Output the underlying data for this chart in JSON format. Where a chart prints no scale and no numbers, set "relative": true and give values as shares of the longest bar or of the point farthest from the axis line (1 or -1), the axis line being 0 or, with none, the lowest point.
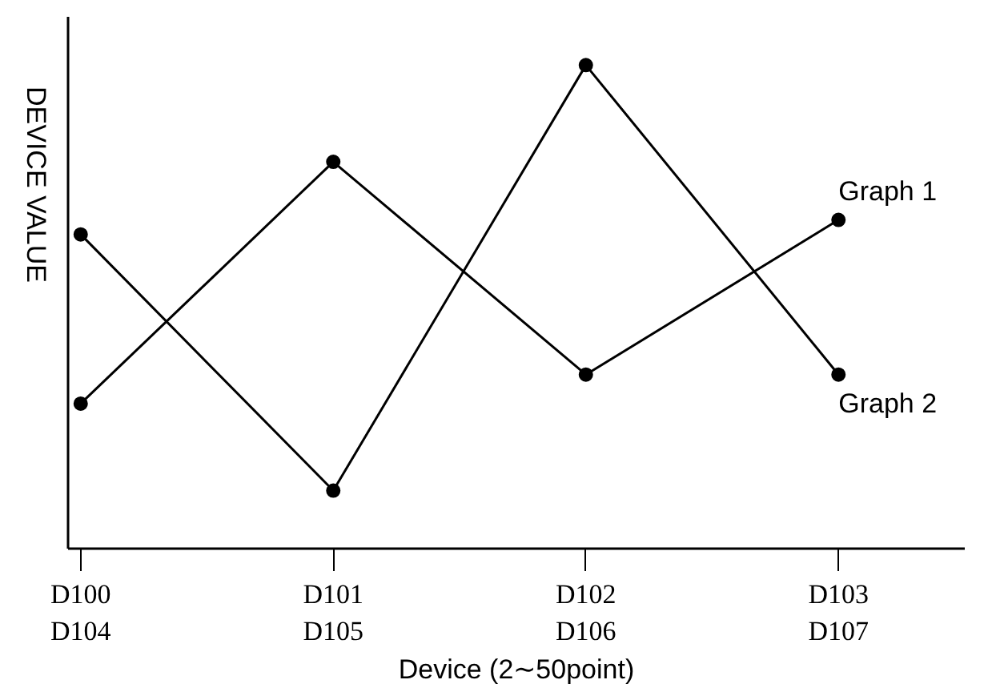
{
  "chart_data": {
    "type": "line",
    "relative": true,
    "xlabel": "Device (2∼50point)",
    "ylabel": "DEVICE VALUE",
    "categories": [
      "D100\nD104",
      "D101\nD105",
      "D102\nD106",
      "D103\nD107"
    ],
    "series": [
      {
        "name": "Graph 1",
        "color": "#000000",
        "values": [
          0.3,
          0.8,
          0.36,
          0.68
        ]
      },
      {
        "name": "Graph 2",
        "color": "#000000",
        "values": [
          0.65,
          0.12,
          1.0,
          0.36
        ]
      }
    ],
    "marker": "circle",
    "line_style": "solid",
    "grid": false
  }
}
